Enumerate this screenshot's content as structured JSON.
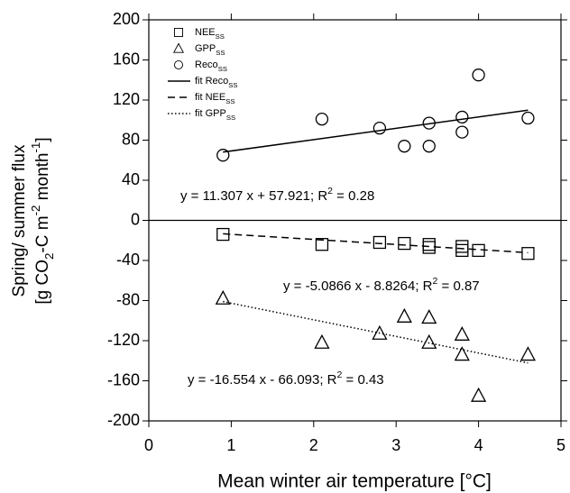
{
  "chart_data": {
    "type": "scatter",
    "xlabel": "Mean winter air temperature [°C]",
    "ylabel": [
      [
        [
          "Spring/ summer flux",
          ""
        ]
      ],
      [
        [
          "[g CO",
          ""
        ],
        [
          "2",
          "sub"
        ],
        [
          "-C m",
          ""
        ],
        [
          "-2",
          "sup"
        ],
        [
          " month",
          ""
        ],
        [
          "-1",
          "sup"
        ],
        [
          "]",
          ""
        ]
      ]
    ],
    "xlim": [
      0,
      5
    ],
    "xticks": [
      0,
      1,
      2,
      3,
      4,
      5
    ],
    "ylim": [
      -200,
      200
    ],
    "yticks": [
      -200,
      -160,
      -120,
      -80,
      -40,
      0,
      40,
      80,
      120,
      160,
      200
    ],
    "series": [
      {
        "name": [
          [
            "NEE",
            ""
          ],
          [
            "SS",
            "sub"
          ]
        ],
        "kind": "scatter",
        "marker": "square",
        "color": "#000000",
        "x": [
          0.9,
          2.1,
          2.8,
          3.1,
          3.4,
          3.4,
          3.8,
          3.8,
          4.0,
          4.6
        ],
        "values": [
          -14,
          -24,
          -22,
          -23,
          -24,
          -27,
          -26,
          -30,
          -30,
          -33
        ]
      },
      {
        "name": [
          [
            "GPP",
            ""
          ],
          [
            "SS",
            "sub"
          ]
        ],
        "kind": "scatter",
        "marker": "triangle",
        "color": "#000000",
        "x": [
          0.9,
          2.1,
          2.8,
          3.1,
          3.4,
          3.4,
          3.8,
          3.8,
          4.0,
          4.6
        ],
        "values": [
          -78,
          -122,
          -113,
          -96,
          -97,
          -122,
          -114,
          -134,
          -175,
          -134
        ]
      },
      {
        "name": [
          [
            "Reco",
            ""
          ],
          [
            "SS",
            "sub"
          ]
        ],
        "kind": "scatter",
        "marker": "circle",
        "color": "#000000",
        "x": [
          0.9,
          2.1,
          2.8,
          3.1,
          3.4,
          3.4,
          3.8,
          3.8,
          4.0,
          4.6
        ],
        "values": [
          65,
          101,
          92,
          74,
          74,
          97,
          103,
          88,
          145,
          102
        ]
      },
      {
        "name": [
          [
            "fit Reco",
            ""
          ],
          [
            "SS",
            "sub"
          ]
        ],
        "kind": "line",
        "dash": "solid",
        "color": "#000000",
        "x": [
          0.9,
          4.6
        ],
        "values": [
          68.1,
          109.9
        ]
      },
      {
        "name": [
          [
            "fit NEE",
            ""
          ],
          [
            "SS",
            "sub"
          ]
        ],
        "kind": "line",
        "dash": "dashed",
        "color": "#000000",
        "x": [
          0.9,
          4.6
        ],
        "values": [
          -13.4,
          -32.2
        ]
      },
      {
        "name": [
          [
            "fit GPP",
            ""
          ],
          [
            "SS",
            "sub"
          ]
        ],
        "kind": "line",
        "dash": "dotted",
        "color": "#000000",
        "x": [
          0.9,
          4.6
        ],
        "values": [
          -81.0,
          -142.2
        ]
      }
    ],
    "annotations": [
      [
        [
          "y = 11.307 x + 57.921; R",
          ""
        ],
        [
          "2",
          "sup"
        ],
        [
          " = 0.28",
          ""
        ]
      ],
      [
        [
          "y = -5.0866 x - 8.8264; R",
          ""
        ],
        [
          "2",
          "sup"
        ],
        [
          " = 0.87",
          ""
        ]
      ],
      [
        [
          "y = -16.554 x - 66.093; R",
          ""
        ],
        [
          "2",
          "sup"
        ],
        [
          " = 0.43",
          ""
        ]
      ]
    ]
  }
}
